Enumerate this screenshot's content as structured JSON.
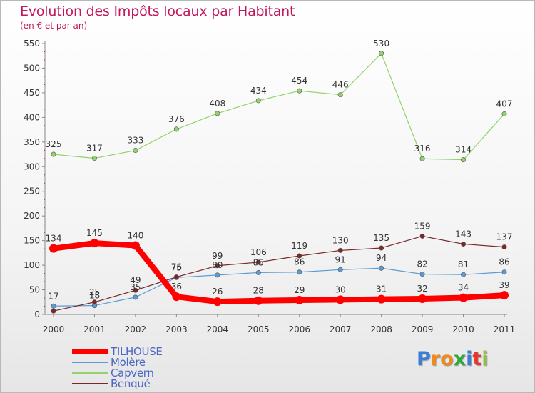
{
  "chart_data": {
    "type": "line",
    "title": "Evolution des Impôts locaux par Habitant",
    "subtitle": "(en € et par an)",
    "x": [
      "2000",
      "2001",
      "2002",
      "2003",
      "2004",
      "2005",
      "2006",
      "2007",
      "2008",
      "2009",
      "2010",
      "2011"
    ],
    "yticks": [
      "0",
      "50",
      "100",
      "150",
      "200",
      "250",
      "300",
      "350",
      "400",
      "450",
      "500",
      "550"
    ],
    "ylim": [
      0,
      550
    ],
    "grid": false,
    "legend_position": "bottom-left",
    "series": [
      {
        "name": "TILHOUSE",
        "color": "#ff0000",
        "values": [
          134,
          145,
          140,
          36,
          26,
          28,
          29,
          30,
          31,
          32,
          34,
          39
        ]
      },
      {
        "name": "Molère",
        "color": "#5b9bd5",
        "values": [
          17,
          18,
          35,
          75,
          80,
          85,
          86,
          91,
          94,
          82,
          81,
          86
        ]
      },
      {
        "name": "Capvern",
        "color": "#8fd36a",
        "values": [
          325,
          317,
          333,
          376,
          408,
          434,
          454,
          446,
          530,
          316,
          314,
          407
        ]
      },
      {
        "name": "Benqué",
        "color": "#7a2828",
        "values": [
          7,
          25,
          49,
          76,
          99,
          106,
          119,
          130,
          135,
          159,
          143,
          137
        ]
      }
    ],
    "data_labels": [
      [
        "134",
        "145",
        "140",
        "36",
        "26",
        "28",
        "29",
        "30",
        "31",
        "32",
        "34",
        "39"
      ],
      [
        "17",
        "18",
        "35",
        "75",
        "80",
        "85",
        "86",
        "91",
        "94",
        "82",
        "81",
        "86"
      ],
      [
        "325",
        "317",
        "333",
        "376",
        "408",
        "434",
        "454",
        "446",
        "530",
        "316",
        "314",
        "407"
      ],
      [
        "",
        "25",
        "49",
        "76",
        "99",
        "106",
        "119",
        "130",
        "135",
        "159",
        "143",
        "137"
      ]
    ]
  },
  "logo": {
    "letters": [
      "P",
      "r",
      "o",
      "x",
      "i",
      "t",
      "i"
    ],
    "colors": [
      "#3b7fd4",
      "#f08a1c",
      "#f08a1c",
      "#2eaa3c",
      "#3b7fd4",
      "#e8352c",
      "#8cc43c"
    ]
  }
}
